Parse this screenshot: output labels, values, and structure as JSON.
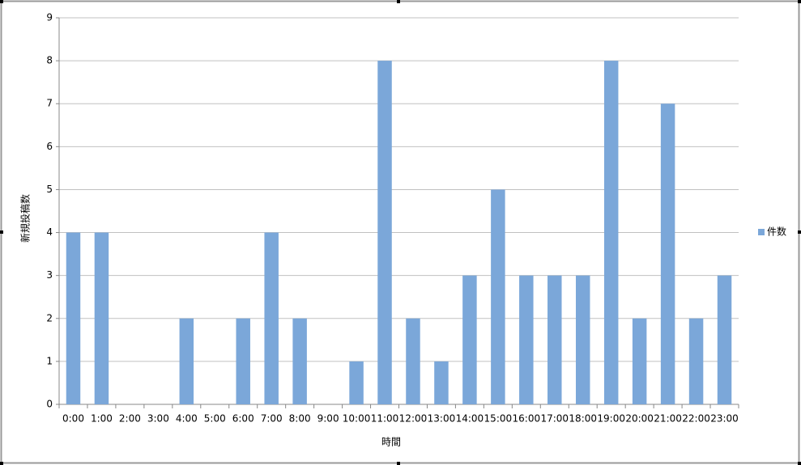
{
  "chart_data": {
    "type": "bar",
    "x_label": "時間",
    "y_label": "新規投稿数",
    "categories": [
      "0:00",
      "1:00",
      "2:00",
      "3:00",
      "4:00",
      "5:00",
      "6:00",
      "7:00",
      "8:00",
      "9:00",
      "10:00",
      "11:00",
      "12:00",
      "13:00",
      "14:00",
      "15:00",
      "16:00",
      "17:00",
      "18:00",
      "19:00",
      "20:00",
      "21:00",
      "22:00",
      "23:00"
    ],
    "series": [
      {
        "name": "件数",
        "color": "#7ba7d9",
        "values": [
          4,
          4,
          0,
          0,
          2,
          0,
          2,
          4,
          2,
          0,
          1,
          8,
          2,
          1,
          3,
          5,
          3,
          3,
          3,
          8,
          2,
          7,
          2,
          3
        ]
      }
    ],
    "ylim": [
      0,
      9
    ],
    "yticks": [
      0,
      1,
      2,
      3,
      4,
      5,
      6,
      7,
      8,
      9
    ],
    "grid": true,
    "legend": "right"
  }
}
